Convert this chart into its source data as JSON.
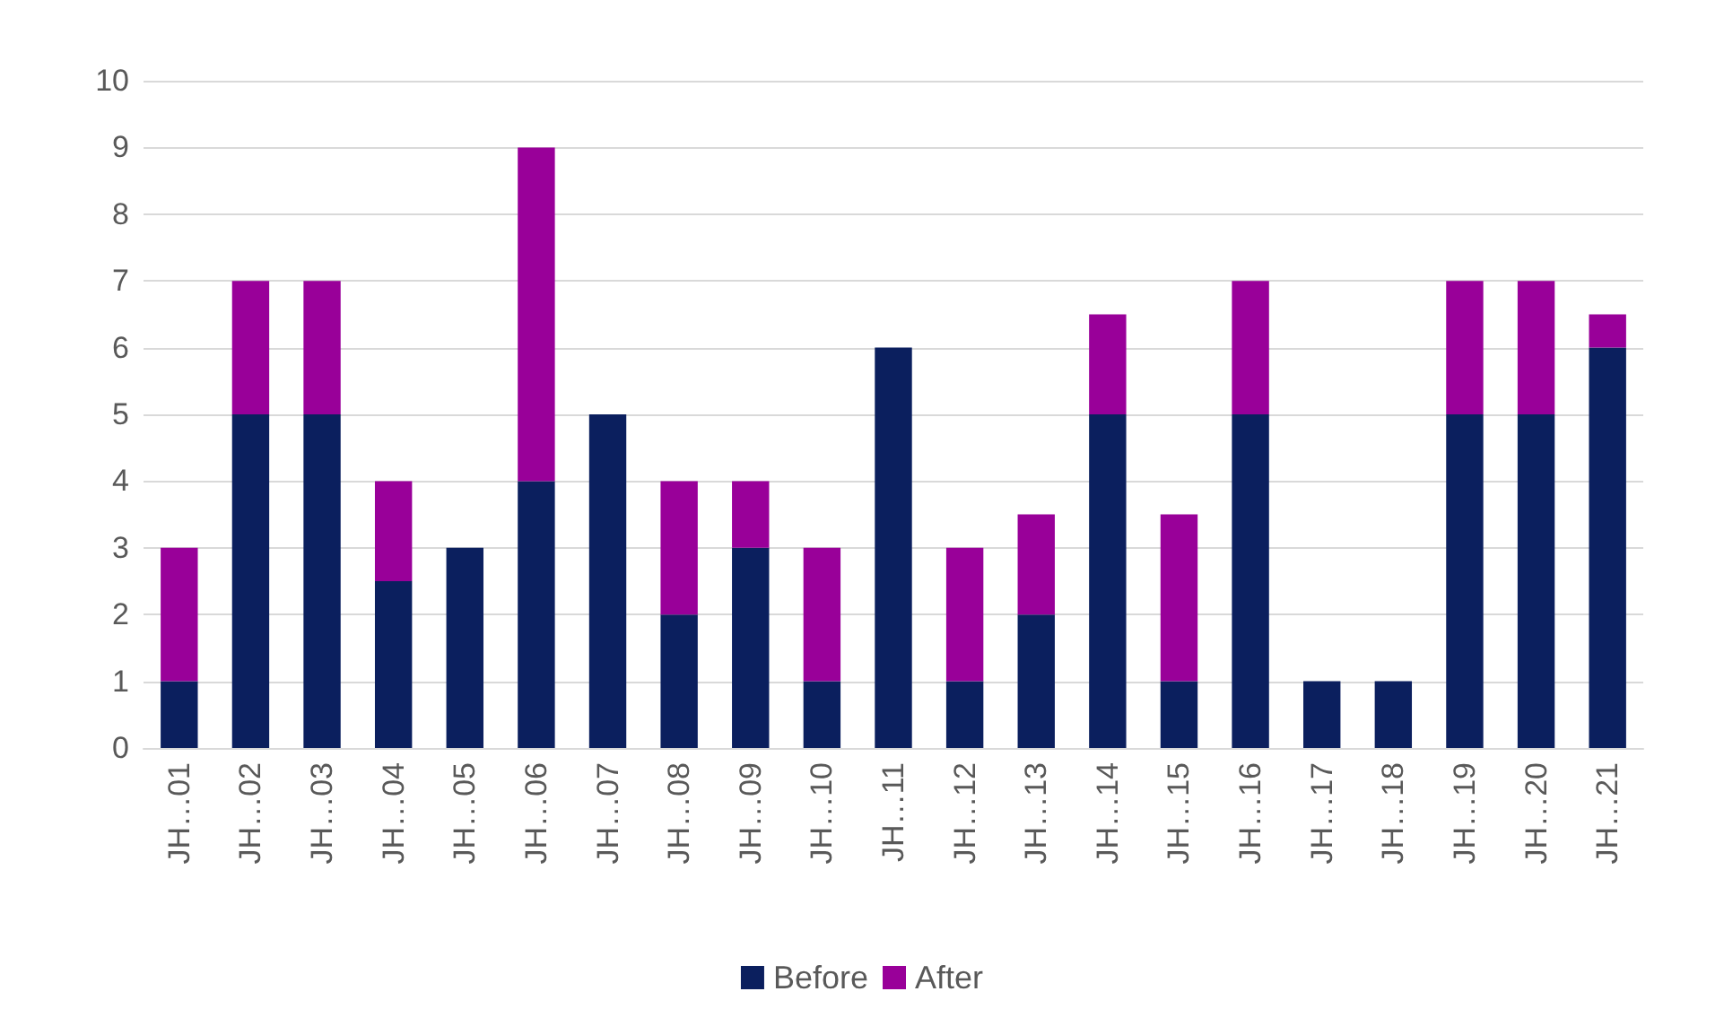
{
  "chart_data": {
    "type": "bar",
    "stacked": true,
    "categories": [
      "JH…01",
      "JH…02",
      "JH…03",
      "JH…04",
      "JH…05",
      "JH…06",
      "JH…07",
      "JH…08",
      "JH…09",
      "JH…10",
      "JH…11",
      "JH…12",
      "JH…13",
      "JH…14",
      "JH…15",
      "JH…16",
      "JH…17",
      "JH…18",
      "JH…19",
      "JH…20",
      "JH…21"
    ],
    "series": [
      {
        "name": "Before",
        "color": "#0b1f5e",
        "values": [
          1,
          5,
          5,
          2.5,
          3,
          4,
          5,
          2,
          3,
          1,
          6,
          1,
          2,
          5,
          1,
          5,
          1,
          1,
          5,
          5,
          6
        ]
      },
      {
        "name": "After",
        "color": "#990099",
        "values": [
          2,
          2,
          2,
          1.5,
          0,
          5,
          0,
          2,
          1,
          2,
          0,
          2,
          1.5,
          1.5,
          2.5,
          2,
          0,
          0,
          2,
          2,
          0.5
        ]
      }
    ],
    "ylim": [
      0,
      10
    ],
    "yticks": [
      0,
      1,
      2,
      3,
      4,
      5,
      6,
      7,
      8,
      9,
      10
    ],
    "grid": "y",
    "legend": "bottom"
  }
}
